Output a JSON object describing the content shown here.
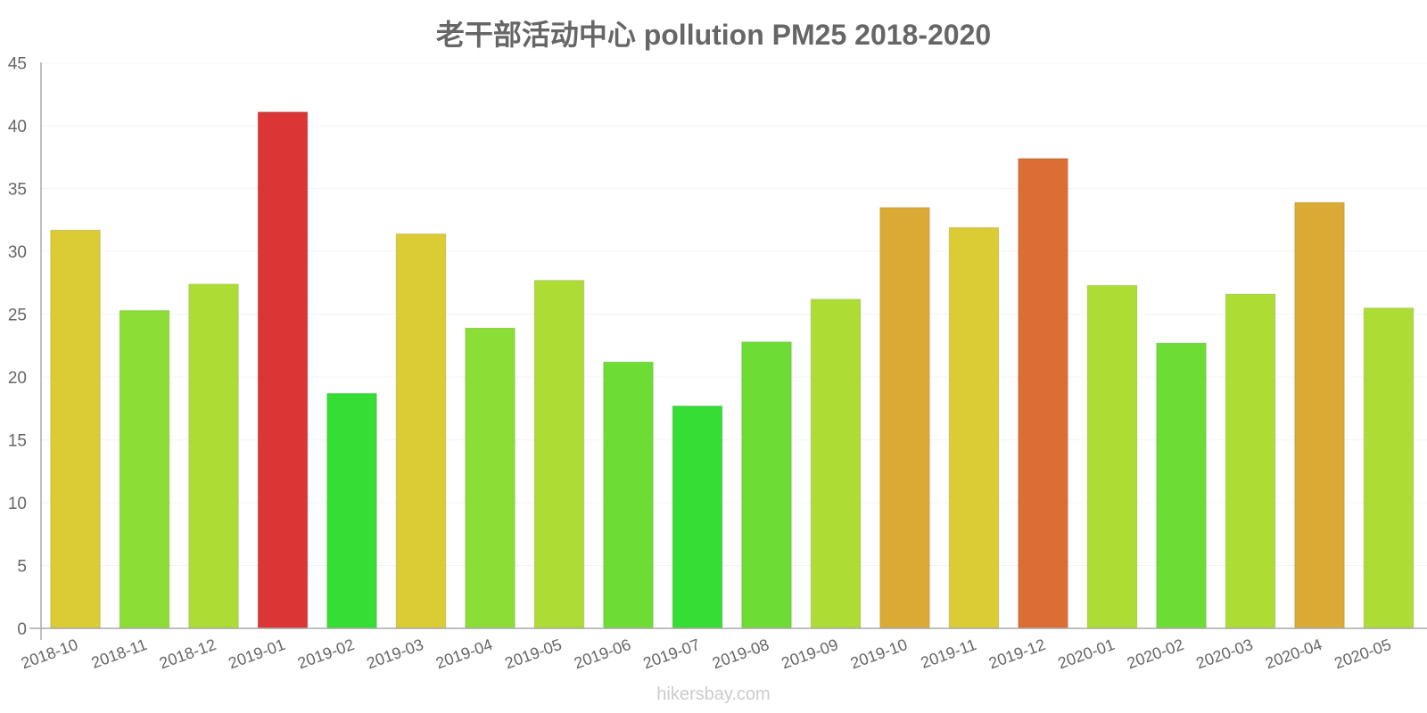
{
  "chart_data": {
    "type": "bar",
    "title": "老干部活动中心 pollution PM25 2018-2020",
    "xlabel": "",
    "ylabel": "",
    "ylim": [
      0,
      45
    ],
    "yticks": [
      0,
      5,
      10,
      15,
      20,
      25,
      30,
      35,
      40,
      45
    ],
    "grid": true,
    "legend": null,
    "categories": [
      "2018-10",
      "2018-11",
      "2018-12",
      "2019-01",
      "2019-02",
      "2019-03",
      "2019-04",
      "2019-05",
      "2019-06",
      "2019-07",
      "2019-08",
      "2019-09",
      "2019-10",
      "2019-11",
      "2019-12",
      "2020-01",
      "2020-02",
      "2020-03",
      "2020-04",
      "2020-05"
    ],
    "values": [
      31.7,
      25.3,
      27.4,
      41.1,
      18.7,
      31.4,
      23.9,
      27.7,
      21.2,
      17.7,
      22.8,
      26.2,
      33.5,
      31.9,
      37.4,
      27.3,
      22.7,
      26.6,
      33.9,
      25.5
    ],
    "colors": [
      "#dbcb35",
      "#8cdd35",
      "#addd35",
      "#db3535",
      "#35dd35",
      "#dbcb35",
      "#8cdd35",
      "#addd35",
      "#6ddd35",
      "#35dd35",
      "#6ddd35",
      "#addd35",
      "#dbaa35",
      "#dbcb35",
      "#db6d35",
      "#addd35",
      "#6ddd35",
      "#addd35",
      "#dbaa35",
      "#addd35"
    ]
  },
  "watermark": "hikersbay.com"
}
